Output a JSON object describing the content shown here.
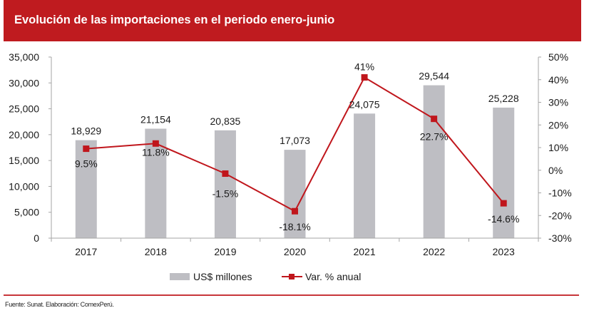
{
  "header": {
    "title": "Evolución de las importaciones en el periodo enero-junio"
  },
  "footer": {
    "source": "Fuente: Sunat. Elaboración: ComexPerú."
  },
  "colors": {
    "header_bg": "#bf1b1f",
    "bar": "#bebec3",
    "line": "#c0161c",
    "axis": "#a6a6a6"
  },
  "chart_data": {
    "type": "bar+line",
    "title": "Evolución de las importaciones en el periodo enero-junio",
    "categories": [
      "2017",
      "2018",
      "2019",
      "2020",
      "2021",
      "2022",
      "2023"
    ],
    "series": [
      {
        "name": "US$ millones",
        "type": "bar",
        "axis": "left",
        "values": [
          18929,
          21154,
          20835,
          17073,
          24075,
          29544,
          25228
        ],
        "labels": [
          "18,929",
          "21,154",
          "20,835",
          "17,073",
          "24,075",
          "29,544",
          "25,228"
        ]
      },
      {
        "name": "Var. % anual",
        "type": "line",
        "axis": "right",
        "values": [
          9.5,
          11.8,
          -1.5,
          -18.1,
          41,
          22.7,
          -14.6
        ],
        "labels": [
          "9.5%",
          "11.8%",
          "-1.5%",
          "-18.1%",
          "41%",
          "22.7%",
          "-14.6%"
        ]
      }
    ],
    "y_left": {
      "min": 0,
      "max": 35000,
      "ticks": [
        "0",
        "5,000",
        "10,000",
        "15,000",
        "20,000",
        "25,000",
        "30,000",
        "35,000"
      ]
    },
    "y_right": {
      "min": -30,
      "max": 50,
      "ticks": [
        "-30%",
        "-20%",
        "-10%",
        "0%",
        "10%",
        "20%",
        "30%",
        "40%",
        "50%"
      ]
    },
    "grid": false,
    "legend": {
      "position": "bottom",
      "items": [
        "US$ millones",
        "Var. % anual"
      ]
    },
    "xlabel": "",
    "ylabel": ""
  }
}
